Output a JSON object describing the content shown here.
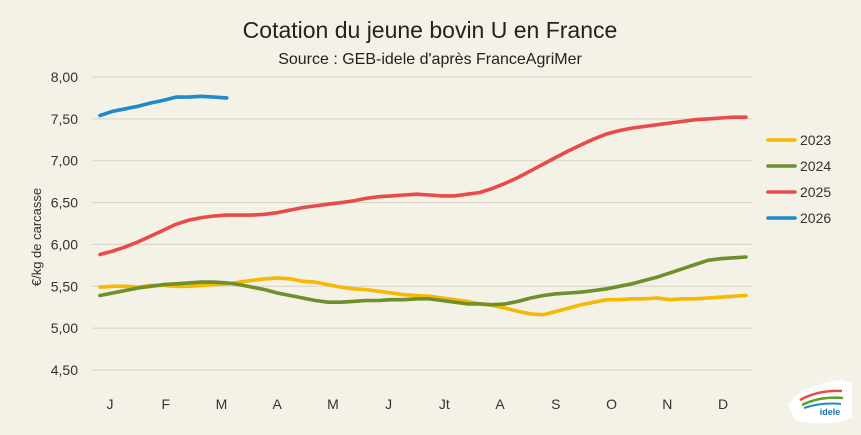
{
  "chart_data": {
    "type": "line",
    "title": "Cotation du jeune bovin U en France",
    "subtitle": "Source : GEB-idele d'après FranceAgriMer",
    "ylabel": "€/kg de carcasse",
    "xlabel": "",
    "ylim": [
      4.5,
      8.0
    ],
    "yticks": [
      "8,00",
      "7,50",
      "7,00",
      "6,50",
      "6,00",
      "5,50",
      "5,00",
      "4,50"
    ],
    "ytick_values": [
      8.0,
      7.5,
      7.0,
      6.5,
      6.0,
      5.5,
      5.0,
      4.5
    ],
    "categories": [
      "J",
      "F",
      "M",
      "A",
      "M",
      "J",
      "Jt",
      "A",
      "S",
      "O",
      "N",
      "D"
    ],
    "xlim": [
      1,
      52
    ],
    "grid": "horizontal",
    "legend_position": "right",
    "series": [
      {
        "name": "2023",
        "color": "#f6b800",
        "points": [
          [
            1,
            5.49
          ],
          [
            2,
            5.5
          ],
          [
            3,
            5.5
          ],
          [
            4,
            5.49
          ],
          [
            5,
            5.51
          ],
          [
            6,
            5.51
          ],
          [
            7,
            5.5
          ],
          [
            8,
            5.5
          ],
          [
            9,
            5.51
          ],
          [
            10,
            5.52
          ],
          [
            11,
            5.53
          ],
          [
            12,
            5.55
          ],
          [
            13,
            5.57
          ],
          [
            14,
            5.59
          ],
          [
            15,
            5.6
          ],
          [
            16,
            5.59
          ],
          [
            17,
            5.56
          ],
          [
            18,
            5.55
          ],
          [
            19,
            5.52
          ],
          [
            20,
            5.49
          ],
          [
            21,
            5.47
          ],
          [
            22,
            5.46
          ],
          [
            23,
            5.44
          ],
          [
            24,
            5.42
          ],
          [
            25,
            5.4
          ],
          [
            26,
            5.39
          ],
          [
            27,
            5.38
          ],
          [
            28,
            5.36
          ],
          [
            29,
            5.34
          ],
          [
            30,
            5.32
          ],
          [
            31,
            5.29
          ],
          [
            32,
            5.27
          ],
          [
            33,
            5.24
          ],
          [
            34,
            5.2
          ],
          [
            35,
            5.17
          ],
          [
            36,
            5.16
          ],
          [
            37,
            5.2
          ],
          [
            38,
            5.24
          ],
          [
            39,
            5.28
          ],
          [
            40,
            5.31
          ],
          [
            41,
            5.34
          ],
          [
            42,
            5.34
          ],
          [
            43,
            5.35
          ],
          [
            44,
            5.35
          ],
          [
            45,
            5.36
          ],
          [
            46,
            5.34
          ],
          [
            47,
            5.35
          ],
          [
            48,
            5.35
          ],
          [
            49,
            5.36
          ],
          [
            50,
            5.37
          ],
          [
            51,
            5.38
          ],
          [
            52,
            5.39
          ]
        ]
      },
      {
        "name": "2024",
        "color": "#6e8f2c",
        "points": [
          [
            1,
            5.39
          ],
          [
            2,
            5.42
          ],
          [
            3,
            5.45
          ],
          [
            4,
            5.48
          ],
          [
            5,
            5.5
          ],
          [
            6,
            5.52
          ],
          [
            7,
            5.53
          ],
          [
            8,
            5.54
          ],
          [
            9,
            5.55
          ],
          [
            10,
            5.55
          ],
          [
            11,
            5.54
          ],
          [
            12,
            5.52
          ],
          [
            13,
            5.49
          ],
          [
            14,
            5.46
          ],
          [
            15,
            5.42
          ],
          [
            16,
            5.39
          ],
          [
            17,
            5.36
          ],
          [
            18,
            5.33
          ],
          [
            19,
            5.31
          ],
          [
            20,
            5.31
          ],
          [
            21,
            5.32
          ],
          [
            22,
            5.33
          ],
          [
            23,
            5.33
          ],
          [
            24,
            5.34
          ],
          [
            25,
            5.34
          ],
          [
            26,
            5.35
          ],
          [
            27,
            5.35
          ],
          [
            28,
            5.33
          ],
          [
            29,
            5.31
          ],
          [
            30,
            5.29
          ],
          [
            31,
            5.29
          ],
          [
            32,
            5.28
          ],
          [
            33,
            5.29
          ],
          [
            34,
            5.32
          ],
          [
            35,
            5.36
          ],
          [
            36,
            5.39
          ],
          [
            37,
            5.41
          ],
          [
            38,
            5.42
          ],
          [
            39,
            5.43
          ],
          [
            40,
            5.45
          ],
          [
            41,
            5.47
          ],
          [
            42,
            5.5
          ],
          [
            43,
            5.53
          ],
          [
            44,
            5.57
          ],
          [
            45,
            5.61
          ],
          [
            46,
            5.66
          ],
          [
            47,
            5.71
          ],
          [
            48,
            5.76
          ],
          [
            49,
            5.81
          ],
          [
            50,
            5.83
          ],
          [
            51,
            5.84
          ],
          [
            52,
            5.85
          ]
        ]
      },
      {
        "name": "2025",
        "color": "#e94a4a",
        "points": [
          [
            1,
            5.88
          ],
          [
            2,
            5.92
          ],
          [
            3,
            5.97
          ],
          [
            4,
            6.03
          ],
          [
            5,
            6.1
          ],
          [
            6,
            6.17
          ],
          [
            7,
            6.24
          ],
          [
            8,
            6.29
          ],
          [
            9,
            6.32
          ],
          [
            10,
            6.34
          ],
          [
            11,
            6.35
          ],
          [
            12,
            6.35
          ],
          [
            13,
            6.35
          ],
          [
            14,
            6.36
          ],
          [
            15,
            6.38
          ],
          [
            16,
            6.41
          ],
          [
            17,
            6.44
          ],
          [
            18,
            6.46
          ],
          [
            19,
            6.48
          ],
          [
            20,
            6.5
          ],
          [
            21,
            6.52
          ],
          [
            22,
            6.55
          ],
          [
            23,
            6.57
          ],
          [
            24,
            6.58
          ],
          [
            25,
            6.59
          ],
          [
            26,
            6.6
          ],
          [
            27,
            6.59
          ],
          [
            28,
            6.58
          ],
          [
            29,
            6.58
          ],
          [
            30,
            6.6
          ],
          [
            31,
            6.62
          ],
          [
            32,
            6.67
          ],
          [
            33,
            6.73
          ],
          [
            34,
            6.8
          ],
          [
            35,
            6.88
          ],
          [
            36,
            6.96
          ],
          [
            37,
            7.04
          ],
          [
            38,
            7.12
          ],
          [
            39,
            7.19
          ],
          [
            40,
            7.26
          ],
          [
            41,
            7.32
          ],
          [
            42,
            7.36
          ],
          [
            43,
            7.39
          ],
          [
            44,
            7.41
          ],
          [
            45,
            7.43
          ],
          [
            46,
            7.45
          ],
          [
            47,
            7.47
          ],
          [
            48,
            7.49
          ],
          [
            49,
            7.5
          ],
          [
            50,
            7.51
          ],
          [
            51,
            7.52
          ],
          [
            52,
            7.52
          ]
        ]
      },
      {
        "name": "2026",
        "color": "#1f8ac9",
        "points": [
          [
            1,
            7.54
          ],
          [
            2,
            7.59
          ],
          [
            3,
            7.62
          ],
          [
            4,
            7.65
          ],
          [
            5,
            7.69
          ],
          [
            6,
            7.72
          ],
          [
            7,
            7.76
          ],
          [
            8,
            7.76
          ],
          [
            9,
            7.77
          ],
          [
            10,
            7.76
          ],
          [
            11,
            7.75
          ]
        ]
      }
    ]
  },
  "logo": {
    "text": "INSTITUT DE L'ÉLEVAGE idele"
  }
}
